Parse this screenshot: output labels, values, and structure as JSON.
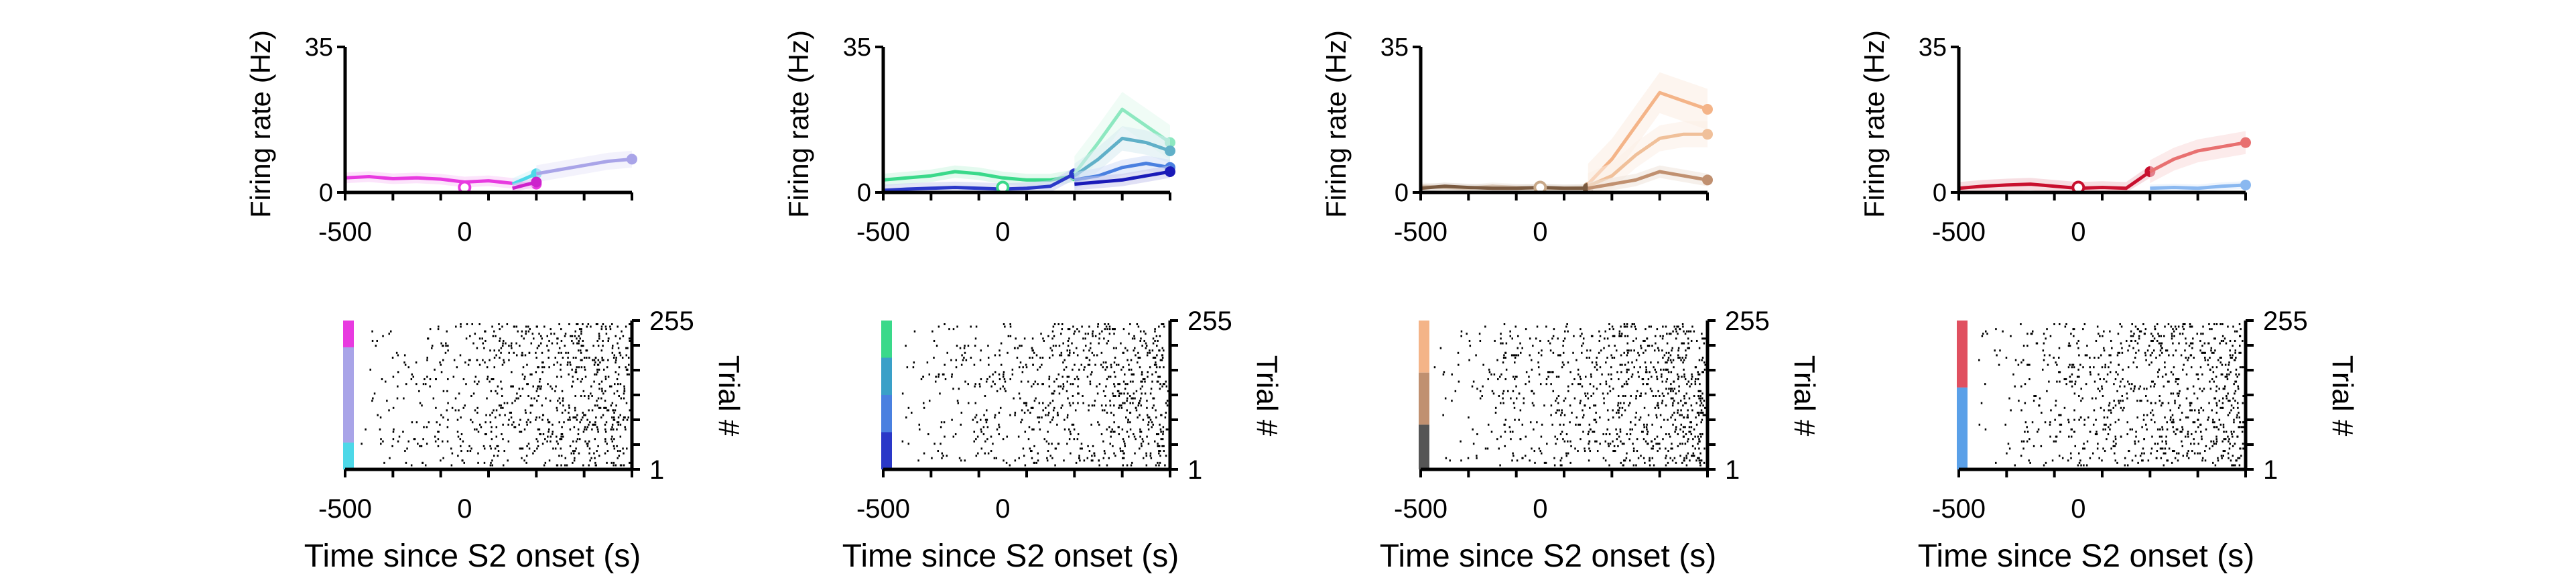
{
  "panels": [
    {
      "ylabel": "Firing rate (Hz)",
      "xlabel": "Time since S2 onset (s)",
      "raster_ylabel": "Trial #",
      "chart_data": {
        "type": "line",
        "x": [
          -500,
          -400,
          -300,
          -200,
          -100,
          0,
          100,
          200,
          300,
          400,
          500,
          600,
          700
        ],
        "xlim": [
          -500,
          700
        ],
        "ylim": [
          0,
          35
        ],
        "xticks": [
          -500,
          0
        ],
        "yticks": [
          0,
          35
        ],
        "series": [
          {
            "color": "#e83ae0",
            "values": [
              3.5,
              3.8,
              3.3,
              3.5,
              3.2,
              2.5,
              2.8,
              2.2,
              2.0,
              null,
              null,
              null,
              null
            ]
          },
          {
            "color": "#4dd8e8",
            "values": [
              null,
              null,
              null,
              null,
              null,
              null,
              null,
              2.0,
              4.5,
              null,
              null,
              null,
              null
            ]
          },
          {
            "color": "#a9a4e8",
            "values": [
              null,
              null,
              null,
              null,
              null,
              null,
              null,
              null,
              4.5,
              5.5,
              6.5,
              7.5,
              8.0
            ]
          },
          {
            "color": "#cc22cc",
            "values": [
              null,
              null,
              null,
              null,
              null,
              null,
              null,
              1.0,
              2.5,
              null,
              null,
              null,
              null
            ]
          }
        ]
      },
      "raster": {
        "trials": [
          1,
          255
        ],
        "color_segments": [
          {
            "color": "#e83ae0",
            "from": 0,
            "to": 0.18
          },
          {
            "color": "#a9a4e8",
            "from": 0.18,
            "to": 0.82
          },
          {
            "color": "#4dd8e8",
            "from": 0.82,
            "to": 1.0
          }
        ]
      }
    },
    {
      "ylabel": "Firing rate (Hz)",
      "xlabel": "Time since S2 onset (s)",
      "raster_ylabel": "Trial #",
      "chart_data": {
        "type": "line",
        "x": [
          -500,
          -400,
          -300,
          -200,
          -100,
          0,
          100,
          200,
          300,
          400,
          500,
          600,
          700
        ],
        "xlim": [
          -500,
          700
        ],
        "ylim": [
          0,
          35
        ],
        "xticks": [
          -500,
          0
        ],
        "yticks": [
          0,
          35
        ],
        "series": [
          {
            "color": "#3ad98a",
            "values": [
              3.0,
              3.5,
              4.0,
              5.0,
              4.5,
              3.5,
              3.0,
              3.0,
              4.0,
              null,
              null,
              null,
              null
            ]
          },
          {
            "color": "#2a38c8",
            "values": [
              0.5,
              0.8,
              1.0,
              1.2,
              1.0,
              0.8,
              1.0,
              1.5,
              4.5,
              null,
              null,
              null,
              null
            ]
          },
          {
            "color": "#8de8c0",
            "values": [
              null,
              null,
              null,
              null,
              null,
              null,
              null,
              null,
              4.5,
              12.0,
              20.0,
              16.0,
              12.0
            ]
          },
          {
            "color": "#60b0c8",
            "values": [
              null,
              null,
              null,
              null,
              null,
              null,
              null,
              null,
              4.0,
              8.0,
              13.0,
              12.0,
              10.0
            ]
          },
          {
            "color": "#4a80e0",
            "values": [
              null,
              null,
              null,
              null,
              null,
              null,
              null,
              null,
              3.0,
              4.0,
              6.0,
              7.0,
              6.0
            ]
          },
          {
            "color": "#1a1ab8",
            "values": [
              null,
              null,
              null,
              null,
              null,
              null,
              null,
              null,
              2.0,
              2.5,
              3.0,
              4.0,
              5.0
            ]
          }
        ]
      },
      "raster": {
        "trials": [
          1,
          255
        ],
        "color_segments": [
          {
            "color": "#3ad98a",
            "from": 0,
            "to": 0.25
          },
          {
            "color": "#3aa0c8",
            "from": 0.25,
            "to": 0.5
          },
          {
            "color": "#4a80e0",
            "from": 0.5,
            "to": 0.75
          },
          {
            "color": "#2a38c8",
            "from": 0.75,
            "to": 1.0
          }
        ]
      }
    },
    {
      "ylabel": "Firing rate (Hz)",
      "xlabel": "Time since S2 onset (s)",
      "raster_ylabel": "Trial #",
      "chart_data": {
        "type": "line",
        "x": [
          -500,
          -400,
          -300,
          -200,
          -100,
          0,
          100,
          200,
          300,
          400,
          500,
          600,
          700
        ],
        "xlim": [
          -500,
          700
        ],
        "ylim": [
          0,
          35
        ],
        "xticks": [
          -500,
          0
        ],
        "yticks": [
          0,
          35
        ],
        "series": [
          {
            "color": "#c8a888",
            "values": [
              1.5,
              1.2,
              1.0,
              1.5,
              1.2,
              1.0,
              1.0,
              1.2,
              null,
              null,
              null,
              null,
              null
            ]
          },
          {
            "color": "#7a5a40",
            "values": [
              1.0,
              1.5,
              1.2,
              1.0,
              1.0,
              1.2,
              1.0,
              1.0,
              null,
              null,
              null,
              null,
              null
            ]
          },
          {
            "color": "#f4b488",
            "values": [
              null,
              null,
              null,
              null,
              null,
              null,
              null,
              2.0,
              8.0,
              16.0,
              24.0,
              22.0,
              20.0
            ]
          },
          {
            "color": "#f0c09a",
            "values": [
              null,
              null,
              null,
              null,
              null,
              null,
              null,
              1.5,
              4.0,
              9.0,
              13.0,
              14.0,
              14.0
            ]
          },
          {
            "color": "#c09070",
            "values": [
              null,
              null,
              null,
              null,
              null,
              null,
              null,
              1.0,
              2.0,
              3.0,
              5.0,
              4.0,
              3.0
            ]
          }
        ]
      },
      "raster": {
        "trials": [
          1,
          255
        ],
        "color_segments": [
          {
            "color": "#f4b488",
            "from": 0,
            "to": 0.35
          },
          {
            "color": "#c09070",
            "from": 0.35,
            "to": 0.7
          },
          {
            "color": "#555555",
            "from": 0.7,
            "to": 1.0
          }
        ]
      }
    },
    {
      "ylabel": "Firing rate (Hz)",
      "xlabel": "Time since S2 onset (s)",
      "raster_ylabel": "Trial #",
      "chart_data": {
        "type": "line",
        "x": [
          -500,
          -400,
          -300,
          -200,
          -100,
          0,
          100,
          200,
          300,
          400,
          500,
          600,
          700
        ],
        "xlim": [
          -500,
          700
        ],
        "ylim": [
          0,
          35
        ],
        "xticks": [
          -500,
          0
        ],
        "yticks": [
          0,
          35
        ],
        "series": [
          {
            "color": "#c8102e",
            "values": [
              1.0,
              1.5,
              1.8,
              2.0,
              1.5,
              1.0,
              1.2,
              1.0,
              5.0,
              null,
              null,
              null,
              null
            ]
          },
          {
            "color": "#e87070",
            "values": [
              null,
              null,
              null,
              null,
              null,
              null,
              null,
              null,
              5.0,
              8.0,
              10.0,
              11.0,
              12.0
            ]
          },
          {
            "color": "#8ab8f0",
            "values": [
              null,
              null,
              null,
              null,
              null,
              null,
              null,
              null,
              1.0,
              1.2,
              1.0,
              1.5,
              1.8
            ]
          }
        ]
      },
      "raster": {
        "trials": [
          1,
          255
        ],
        "color_segments": [
          {
            "color": "#e05060",
            "from": 0,
            "to": 0.45
          },
          {
            "color": "#5aa0e8",
            "from": 0.45,
            "to": 1.0
          }
        ]
      }
    }
  ]
}
